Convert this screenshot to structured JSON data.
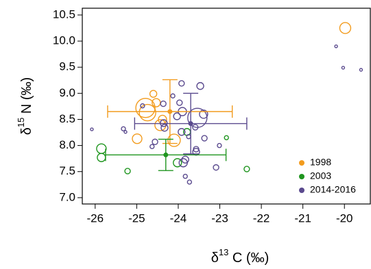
{
  "chart_data": {
    "type": "scatter",
    "xlabel": [
      "δ",
      "13",
      " C (‰)"
    ],
    "ylabel": [
      "δ",
      "15",
      " N (‰)"
    ],
    "xlim": [
      -26.31,
      -19.36
    ],
    "ylim": [
      6.88,
      10.63
    ],
    "xticks": [
      -26,
      -25,
      -24,
      -23,
      -22,
      -21,
      -20
    ],
    "yticks": [
      {
        "value": 7,
        "label": "7.0"
      },
      7.5,
      {
        "value": 8,
        "label": "8.0"
      },
      8.5,
      {
        "value": 9,
        "label": "9.0"
      },
      9.5,
      {
        "value": 10,
        "label": "10.0"
      },
      10.5
    ],
    "legend": "bottom-right",
    "series": [
      {
        "name": "1998",
        "color": "#f29b1d",
        "x": [
          -19.98,
          -24.79,
          -24.74,
          -24.6,
          -24.99,
          -24.43,
          -24.1,
          -24.38,
          -24.53
        ],
        "values": [
          10.25,
          8.72,
          8.63,
          8.99,
          8.13,
          8.39,
          8.1,
          8.5,
          8.82
        ],
        "sizes": [
          8,
          14,
          12,
          5,
          7,
          8,
          9,
          6,
          6
        ],
        "mean": {
          "x": -24.2,
          "y": 8.65,
          "xerr": 1.5,
          "yerr": 0.61
        }
      },
      {
        "name": "2003",
        "color": "#1f951f",
        "x": [
          -25.85,
          -25.85,
          -25.22,
          -23.79,
          -24.02,
          -22.84,
          -22.35
        ],
        "values": [
          7.94,
          7.77,
          7.51,
          8.26,
          7.67,
          8.15,
          7.55
        ],
        "sizes": [
          7,
          6,
          4,
          5,
          6,
          3,
          4
        ],
        "mean": {
          "x": -24.3,
          "y": 7.82,
          "xerr": 1.45,
          "yerr": 0.3
        }
      },
      {
        "name": "2014-2016",
        "color": "#5a4a8e",
        "x": [
          -20.2,
          -20.03,
          -19.6,
          -26.08,
          -25.32,
          -25.27,
          -24.86,
          -23.92,
          -23.47,
          -23.39,
          -23.54,
          -23.9,
          -24.03,
          -23.92,
          -23.59,
          -23.57,
          -23.57,
          -23.37,
          -23.75,
          -24.33,
          -24.35,
          -24.63,
          -23.88,
          -23.83,
          -23.09,
          -23.01,
          -23.97,
          -24.13,
          -24.36,
          -23.83,
          -23.73,
          -24.56
        ],
        "values": [
          9.9,
          9.49,
          9.45,
          8.31,
          8.32,
          8.26,
          8.76,
          9.19,
          9.14,
          8.6,
          8.53,
          8.65,
          8.56,
          8.26,
          8.35,
          7.93,
          7.88,
          8.14,
          8.17,
          8.34,
          8.43,
          7.98,
          7.67,
          7.73,
          7.58,
          8.0,
          8.82,
          8.95,
          8.8,
          7.41,
          7.3,
          8.07
        ],
        "sizes": [
          2,
          2,
          2,
          2,
          3,
          2,
          3,
          4,
          5,
          6,
          14,
          6,
          5,
          5,
          4,
          4,
          5,
          4,
          3,
          5,
          5,
          3,
          6,
          5,
          4,
          3,
          4,
          3,
          4,
          3,
          3,
          4
        ],
        "mean": {
          "x": -23.7,
          "y": 8.42,
          "xerr": 1.35,
          "yerr": 0.58
        }
      }
    ]
  }
}
